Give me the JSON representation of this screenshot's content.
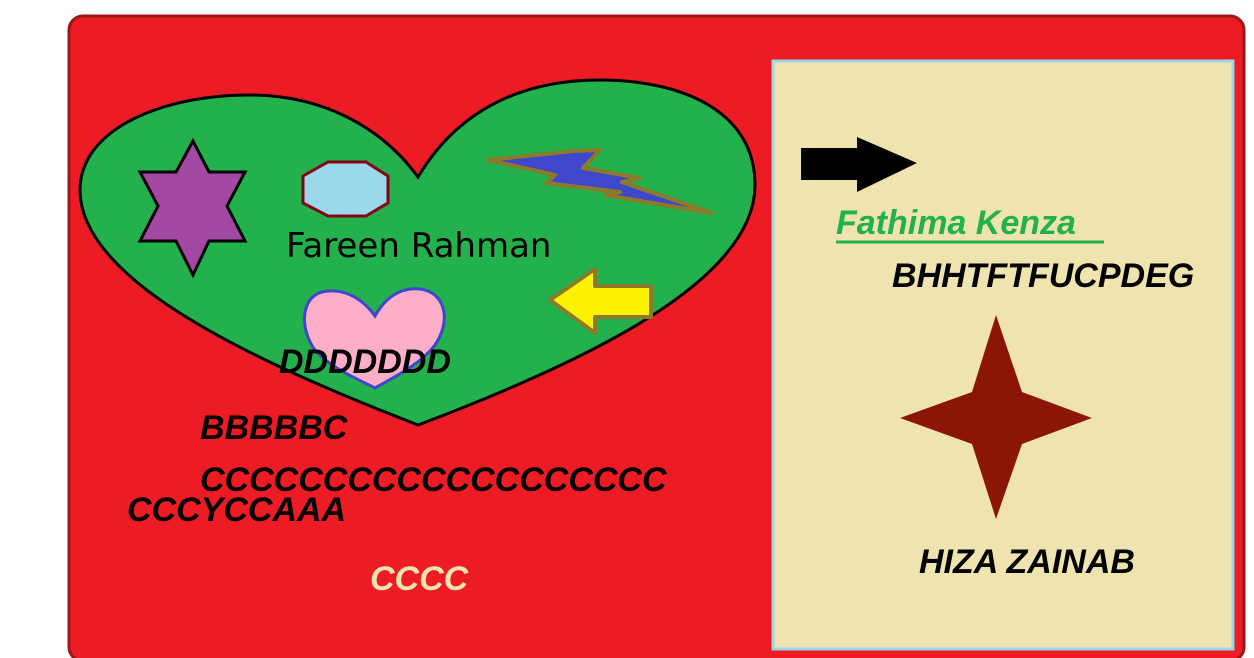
{
  "colors": {
    "background": "#ffffff",
    "card_fill": "#ed1c24",
    "card_border": "#99181a",
    "panel_fill": "#efe4b0",
    "panel_border": "#99d9ea",
    "heart_fill": "#22b14c",
    "star_purple": "#a349a4",
    "hexagon_fill": "#99d9ea",
    "hexagon_border": "#880015",
    "lightning_fill": "#3f48cc",
    "lightning_border": "#8b7a2a",
    "pink_heart": "#ffaec9",
    "pink_heart_border": "#3f48cc",
    "yellow_arrow": "#fff200",
    "yellow_arrow_border": "#8b7a2a",
    "star_dark_red": "#8b1507",
    "green_text": "#22b14c",
    "cream_text": "#efe4b0",
    "black": "#000000"
  },
  "icons": [
    "six-point-star-icon",
    "hexagon-icon",
    "lightning-bolt-icon",
    "heart-icon",
    "arrow-left-icon",
    "arrow-right-icon",
    "four-point-star-icon"
  ],
  "texts": {
    "fareen": "Fareen Rahman",
    "ddd": "DDDDDDD",
    "bbb": "BBBBBC",
    "ccc_long": "CCCCCCCCCCCCCCCCCCC",
    "cccy": "CCCYCCAAA",
    "cccc": "CCCC",
    "fathima": "Fathima Kenza",
    "bhh": "BHHTFTFUCPDEG",
    "hiza": "HIZA ZAINAB"
  }
}
